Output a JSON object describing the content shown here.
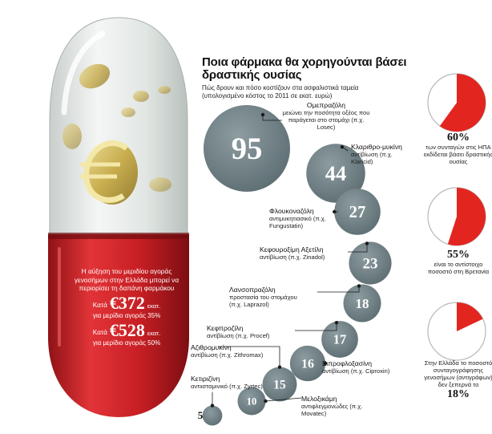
{
  "headline": {
    "title": "Ποια φάρμακα θα χορηγούνται βάσει δραστικής ουσίας",
    "subtitle": "Πώς δρουν και πόσο κοστίζουν στα ασφαλιστικά ταμεία (υπολογισμένο κόστος το 2011 σε εκατ. ευρώ)"
  },
  "capsule": {
    "intro": "Η αύξηση του μεριδίου αγοράς γενοσήμων στην Ελλάδα μπορεί να περιορίσει τη δαπάνη φαρμάκου",
    "rows": [
      {
        "prefix": "Κατά",
        "amount": "€372",
        "unit": "εκατ.",
        "share": "για μερίδιο αγοράς 35%"
      },
      {
        "prefix": "Κατά",
        "amount": "€528",
        "unit": "εκατ.",
        "share": "για μερίδιο αγοράς 50%"
      }
    ],
    "colors": {
      "red": "#d4262a",
      "red_dark": "#8e1216",
      "glass": "#e4e9e6",
      "coin": "#c9b24a"
    }
  },
  "chart_data": [
    {
      "type": "bubble",
      "series": [
        {
          "value": 95,
          "name": "Ομεπραζόλη",
          "desc": "μειώνει την ποσότητα οξέος που παράγεται στο στομάχι (π.χ. Losec)"
        },
        {
          "value": 44,
          "name": "Κλαριθρο-μυκίνη",
          "desc": "αντίβίωση (π.χ. Klaricid)"
        },
        {
          "value": 27,
          "name": "Φλουκοναζόλη",
          "desc": "αντιμυκητιασικό (π.χ. Fungustatin)"
        },
        {
          "value": 23,
          "name": "Κεφουροξίμη Αξετίλη",
          "desc": "αντίβίωση (π.χ. Zinadol)"
        },
        {
          "value": 18,
          "name": "Λανσοπραζόλη",
          "desc": "προστασία του στομάχου (π.χ. Laprazol)"
        },
        {
          "value": 17,
          "name": "Κεφπροζίλη",
          "desc": "αντίβίωση (π.χ. Procef)"
        },
        {
          "value": 16,
          "name": "Σιπροφλοξασίνη",
          "desc": "αντίβίωση (π.χ. Ciproxin)"
        },
        {
          "value": 15,
          "name": "Αζιθρομυκίνη",
          "desc": "αντίβίωση (π.χ. Zithromax)"
        },
        {
          "value": 10,
          "name": "Μελοξικάμη",
          "desc": "αντιφλεγμονώδες (π.χ. Movatec)"
        },
        {
          "value": 5,
          "name": "Κετιριζίνη",
          "desc": "αντιισταμινικό (π.χ. Zyrtec)"
        }
      ],
      "colors": {
        "bubble": "#5a6b70",
        "bubble_light": "#8d9ca0",
        "leader": "#1a1a1a"
      }
    },
    {
      "type": "pie",
      "slices": [
        {
          "value": 60,
          "pct_label": "60%",
          "caption": "των συνταγών στις ΗΠΑ εκδίδεται βάσει δραστικής ουσίας"
        },
        {
          "value": 55,
          "pct_label": "55%",
          "caption": "είναι το αντίστοιχο ποσοστό στη Βρετανία"
        },
        {
          "value": 18,
          "pct_label": "18%",
          "caption": "Στην Ελλάδα το ποσοστό συνταγογράφησης γενοσήμων (αντιγράφων) δεν ξεπερνά το"
        }
      ],
      "colors": {
        "slice": "#e3251f",
        "rest": "#ffffff",
        "outline": "#b8b8b8"
      }
    }
  ]
}
